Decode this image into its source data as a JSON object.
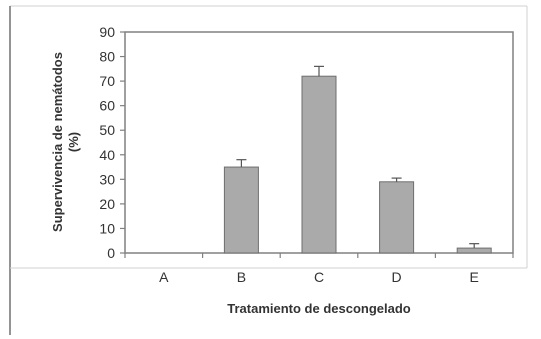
{
  "chart_data": {
    "type": "bar",
    "categories": [
      "A",
      "B",
      "C",
      "D",
      "E"
    ],
    "values": [
      0,
      35,
      72,
      29,
      2
    ],
    "errors": [
      0,
      3,
      4,
      1.5,
      1.8
    ],
    "title": "",
    "xlabel": "Tratamiento de descongelado",
    "ylabel_line1": "Supervivencia de nemátodos",
    "ylabel_line2": "(%)",
    "ylim": [
      0,
      90
    ],
    "yticks": [
      0,
      10,
      20,
      30,
      40,
      50,
      60,
      70,
      80,
      90
    ],
    "grid": false,
    "legend": "none",
    "bar_color": "#aaaaaa",
    "bar_edge_color": "#6e6e6e"
  }
}
